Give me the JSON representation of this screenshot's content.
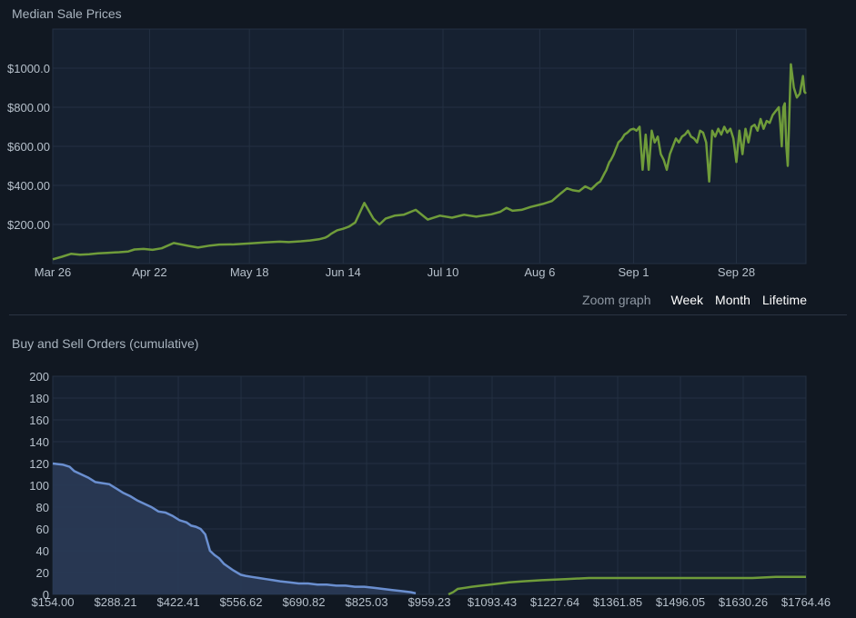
{
  "charts": {
    "price": {
      "title": "Median Sale Prices"
    },
    "orders": {
      "title": "Buy and Sell Orders (cumulative)"
    }
  },
  "zoom": {
    "label": "Zoom graph",
    "week": "Week",
    "month": "Month",
    "lifetime": "Lifetime"
  },
  "colors": {
    "background": "#111822",
    "plot_background": "#162131",
    "grid": "#243042",
    "price_line": "#6f9c3a",
    "buy_line": "#6a8fd0",
    "buy_fill": "#2a3a57",
    "sell_line": "#6f9c3a"
  },
  "chart_data": [
    {
      "type": "line",
      "title": "Median Sale Prices",
      "xlabel": "",
      "ylabel": "",
      "x_tick_labels": [
        "Mar 26",
        "Apr 22",
        "May 18",
        "Jun 14",
        "Jul 10",
        "Aug 6",
        "Sep 1",
        "Sep 28"
      ],
      "y_tick_labels": [
        "$200.00",
        "$400.00",
        "$600.00",
        "$800.00",
        "$1000.0"
      ],
      "y_ticks": [
        200,
        400,
        600,
        800,
        1000
      ],
      "ylim": [
        0,
        1200
      ],
      "grid": true,
      "series": [
        {
          "x": [
            0,
            3,
            6,
            9,
            12,
            15,
            18,
            22,
            25,
            27,
            30,
            33,
            36,
            40,
            45,
            48,
            52,
            55,
            60,
            65,
            70,
            75,
            78,
            82,
            85,
            88,
            90,
            91,
            92,
            94,
            96,
            98,
            100,
            103,
            106,
            108,
            110,
            113,
            116,
            120,
            124,
            128,
            132,
            136,
            140,
            145,
            148,
            150,
            152,
            155,
            158,
            162,
            165,
            168,
            170,
            172,
            174,
            176,
            178,
            180,
            181,
            182,
            182.5,
            183,
            183.5,
            184,
            184.5,
            185,
            185.5,
            186,
            186.5,
            187,
            188,
            189,
            190,
            191,
            192,
            193,
            194,
            195,
            196,
            197,
            198,
            199,
            200,
            201,
            202,
            203,
            204,
            205,
            206,
            207,
            208,
            209,
            210,
            211,
            212,
            213,
            214,
            215,
            216,
            217,
            218,
            219,
            220,
            221,
            222,
            223,
            224,
            225,
            226,
            227,
            228,
            229,
            230,
            231,
            232,
            233,
            234,
            235,
            236,
            237,
            238,
            239,
            239.5,
            240,
            240.5,
            241,
            241.5,
            242,
            242.5,
            243,
            244,
            245,
            246,
            247,
            248,
            248.5,
            249
          ],
          "y": [
            22,
            35,
            50,
            45,
            48,
            52,
            55,
            58,
            62,
            72,
            75,
            70,
            78,
            105,
            90,
            82,
            92,
            97,
            98,
            103,
            108,
            112,
            110,
            114,
            118,
            124,
            132,
            140,
            152,
            170,
            178,
            190,
            210,
            310,
            230,
            200,
            230,
            245,
            250,
            275,
            225,
            245,
            235,
            250,
            240,
            252,
            265,
            285,
            270,
            275,
            290,
            305,
            320,
            360,
            385,
            375,
            370,
            395,
            380,
            410,
            420,
            450,
            465,
            478,
            500,
            520,
            530,
            545,
            560,
            582,
            600,
            620,
            635,
            660,
            670,
            685,
            690,
            680,
            700,
            480,
            660,
            480,
            680,
            620,
            650,
            560,
            530,
            480,
            560,
            600,
            640,
            620,
            650,
            660,
            680,
            650,
            640,
            620,
            680,
            670,
            620,
            420,
            680,
            650,
            690,
            660,
            700,
            670,
            690,
            640,
            520,
            680,
            560,
            690,
            620,
            700,
            710,
            680,
            740,
            690,
            730,
            720,
            760,
            780,
            790,
            800,
            720,
            600,
            800,
            820,
            600,
            500,
            1020,
            900,
            850,
            870,
            960,
            880,
            870
          ],
          "name": ""
        }
      ],
      "x_domain": [
        0,
        249
      ],
      "x_tick_positions": [
        0,
        32,
        65,
        96,
        129,
        161,
        192,
        226
      ]
    },
    {
      "type": "area",
      "title": "Buy and Sell Orders (cumulative)",
      "xlabel": "",
      "ylabel": "",
      "x_tick_labels": [
        "$154.00",
        "$288.21",
        "$422.41",
        "$556.62",
        "$690.82",
        "$825.03",
        "$959.23",
        "$1093.43",
        "$1227.64",
        "$1361.85",
        "$1496.05",
        "$1630.26",
        "$1764.46"
      ],
      "y_tick_labels": [
        "0",
        "20",
        "40",
        "60",
        "80",
        "100",
        "120",
        "140",
        "160",
        "180",
        "200"
      ],
      "ylim": [
        0,
        200
      ],
      "xlim": [
        154,
        1764.46
      ],
      "grid": true,
      "series": [
        {
          "name": "",
          "kind": "buy",
          "x": [
            154,
            175,
            190,
            200,
            215,
            230,
            245,
            260,
            275,
            290,
            305,
            320,
            335,
            350,
            365,
            380,
            395,
            410,
            425,
            440,
            450,
            460,
            470,
            480,
            490,
            500,
            510,
            520,
            530,
            540,
            548,
            556,
            566,
            580,
            595,
            610,
            625,
            640,
            660,
            680,
            700,
            720,
            740,
            760,
            780,
            800,
            820,
            840,
            860,
            880,
            900,
            920,
            930
          ],
          "y": [
            120,
            119,
            117,
            113,
            110,
            107,
            103,
            102,
            101,
            97,
            93,
            90,
            86,
            83,
            80,
            76,
            75,
            72,
            68,
            66,
            63,
            62,
            60,
            55,
            40,
            36,
            33,
            28,
            25,
            22,
            20,
            18,
            17,
            16,
            15,
            14,
            13,
            12,
            11,
            10,
            10,
            9,
            9,
            8,
            8,
            7,
            7,
            6,
            5,
            4,
            3,
            2,
            1
          ]
        },
        {
          "name": "",
          "kind": "sell",
          "x": [
            1000,
            1010,
            1020,
            1035,
            1050,
            1070,
            1090,
            1110,
            1130,
            1160,
            1200,
            1250,
            1300,
            1350,
            1400,
            1450,
            1500,
            1550,
            1600,
            1650,
            1700,
            1764.46
          ],
          "y": [
            0,
            2,
            5,
            6,
            7,
            8,
            9,
            10,
            11,
            12,
            13,
            14,
            15,
            15,
            15,
            15,
            15,
            15,
            15,
            15,
            16,
            16
          ]
        }
      ]
    }
  ]
}
